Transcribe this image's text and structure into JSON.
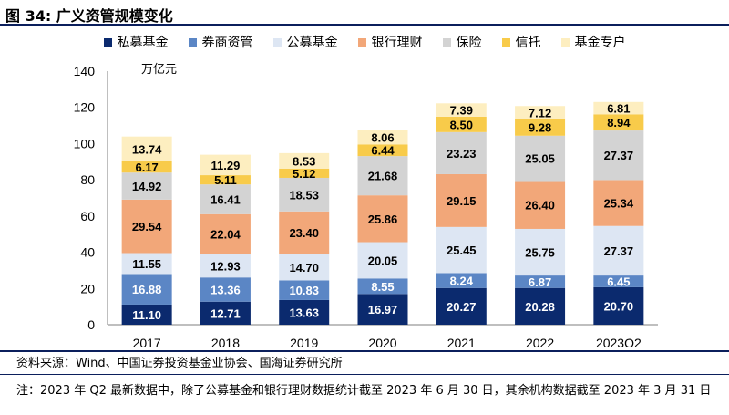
{
  "figure": {
    "title": "图 34:  广义资管规模变化",
    "source": "资料来源：Wind、中国证券投资基金业协会、国海证券研究所",
    "note": "注：2023 年 Q2 最新数据中，除了公募基金和银行理财数据统计截至 2023 年 6 月 30 日，其余机构数据截至 2023 年 3 月 31 日"
  },
  "colors": {
    "private_fund": "#0b2a6e",
    "broker_am": "#5b86c5",
    "public_fund": "#dde6f3",
    "bank_wm": "#f2a779",
    "insurance": "#d3d3d3",
    "trust": "#f8cb4a",
    "fund_subsidiary": "#fdeec0",
    "title_rule": "#0b1f5c"
  },
  "chart_data": {
    "type": "bar",
    "stacked": true,
    "categories": [
      "2017",
      "2018",
      "2019",
      "2020",
      "2021",
      "2022",
      "2023Q2"
    ],
    "ylabel": "万亿元",
    "ylim": [
      0,
      140
    ],
    "yticks": [
      0,
      20,
      40,
      60,
      80,
      100,
      120,
      140
    ],
    "grid": false,
    "legend_position": "top",
    "series": [
      {
        "name": "私募基金",
        "color_key": "private_fund",
        "values": [
          11.1,
          12.71,
          13.63,
          16.97,
          20.27,
          20.28,
          20.7
        ],
        "labels": [
          "11.10",
          "12.71",
          "13.63",
          "16.97",
          "20.27",
          "20.28",
          "20.70"
        ]
      },
      {
        "name": "券商资管",
        "color_key": "broker_am",
        "values": [
          16.88,
          13.36,
          10.83,
          8.55,
          8.24,
          6.87,
          6.45
        ],
        "labels": [
          "16.88",
          "13.36",
          "10.83",
          "8.55",
          "8.24",
          "6.87",
          "6.45"
        ]
      },
      {
        "name": "公募基金",
        "color_key": "public_fund",
        "values": [
          11.55,
          12.93,
          14.7,
          20.05,
          25.45,
          25.75,
          27.37
        ],
        "labels": [
          "11.55",
          "12.93",
          "14.70",
          "20.05",
          "25.45",
          "25.75",
          "27.37"
        ]
      },
      {
        "name": "银行理财",
        "color_key": "bank_wm",
        "values": [
          29.54,
          22.04,
          23.4,
          25.86,
          29.15,
          26.4,
          25.34
        ],
        "labels": [
          "29.54",
          "22.04",
          "23.40",
          "25.86",
          "29.15",
          "26.40",
          "25.34"
        ]
      },
      {
        "name": "保险",
        "color_key": "insurance",
        "values": [
          14.92,
          16.41,
          18.53,
          21.68,
          23.23,
          25.05,
          27.37
        ],
        "labels": [
          "14.92",
          "16.41",
          "18.53",
          "21.68",
          "23.23",
          "25.05",
          "27.37"
        ]
      },
      {
        "name": "信托",
        "color_key": "trust",
        "values": [
          6.17,
          5.11,
          5.12,
          6.44,
          8.5,
          9.28,
          8.94
        ],
        "labels": [
          "6.17",
          "5.11",
          "5.12",
          "6.44",
          "8.50",
          "9.28",
          "8.94"
        ]
      },
      {
        "name": "基金专户",
        "color_key": "fund_subsidiary",
        "values": [
          13.74,
          11.29,
          8.53,
          8.06,
          7.39,
          7.12,
          6.81
        ],
        "labels": [
          "13.74",
          "11.29",
          "8.53",
          "8.06",
          "7.39",
          "7.12",
          "6.81"
        ]
      }
    ]
  }
}
